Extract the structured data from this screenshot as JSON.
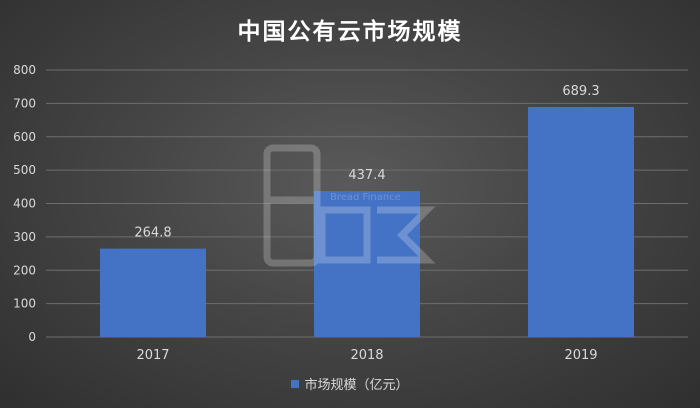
{
  "chart_data": {
    "type": "bar",
    "title": "中国公有云市场规模",
    "categories": [
      "2017",
      "2018",
      "2019"
    ],
    "series": [
      {
        "name": "市场规模（亿元）",
        "values": [
          264.8,
          437.4,
          689.3
        ]
      }
    ],
    "data_labels": [
      "264.8",
      "437.4",
      "689.3"
    ],
    "ylim": [
      0,
      800
    ],
    "yticks": [
      0,
      100,
      200,
      300,
      400,
      500,
      600,
      700,
      800
    ],
    "grid": true,
    "legend_position": "bottom",
    "colors": {
      "bar": "#4472c4",
      "grid": "#6e6e6e",
      "text": "#d9d9d9"
    }
  },
  "watermark": {
    "text": "Bread Finance",
    "logo_text": "面包财经"
  }
}
